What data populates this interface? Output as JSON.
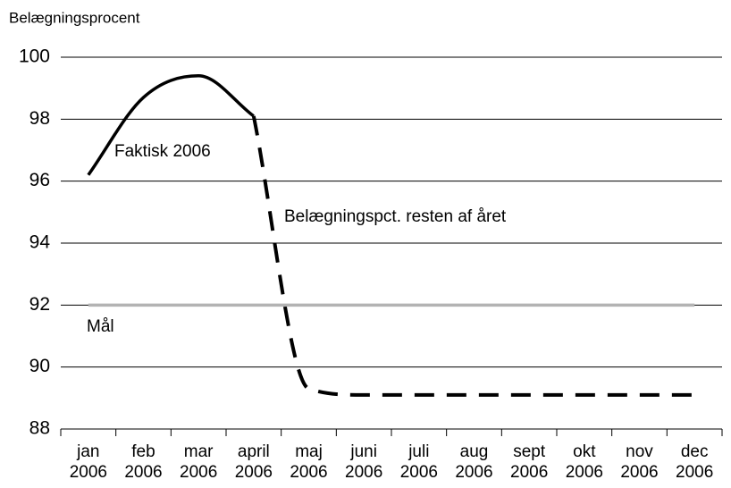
{
  "chart_data": {
    "type": "line",
    "y_label": "Belægningsprocent",
    "categories": [
      "jan 2006",
      "feb 2006",
      "mar 2006",
      "april 2006",
      "maj 2006",
      "juni 2006",
      "juli 2006",
      "aug 2006",
      "sept 2006",
      "okt 2006",
      "nov 2006",
      "dec 2006"
    ],
    "series": [
      {
        "name": "Faktisk 2006",
        "color": "#000000",
        "style": "solid",
        "values": [
          96.2,
          98.7,
          99.4,
          98.1,
          null,
          null,
          null,
          null,
          null,
          null,
          null,
          null
        ]
      },
      {
        "name": "Belægningspct. resten af året",
        "color": "#000000",
        "style": "dashed",
        "values": [
          null,
          null,
          null,
          98.1,
          89.3,
          89.1,
          89.1,
          89.1,
          89.1,
          89.1,
          89.1,
          89.1
        ]
      },
      {
        "name": "Mål",
        "color": "#b3b3b3",
        "style": "solid",
        "values": [
          92,
          92,
          92,
          92,
          92,
          92,
          92,
          92,
          92,
          92,
          92,
          92
        ]
      }
    ],
    "ylim": [
      88,
      100
    ],
    "yticks": [
      88,
      90,
      92,
      94,
      96,
      98,
      100
    ],
    "grid": true
  }
}
